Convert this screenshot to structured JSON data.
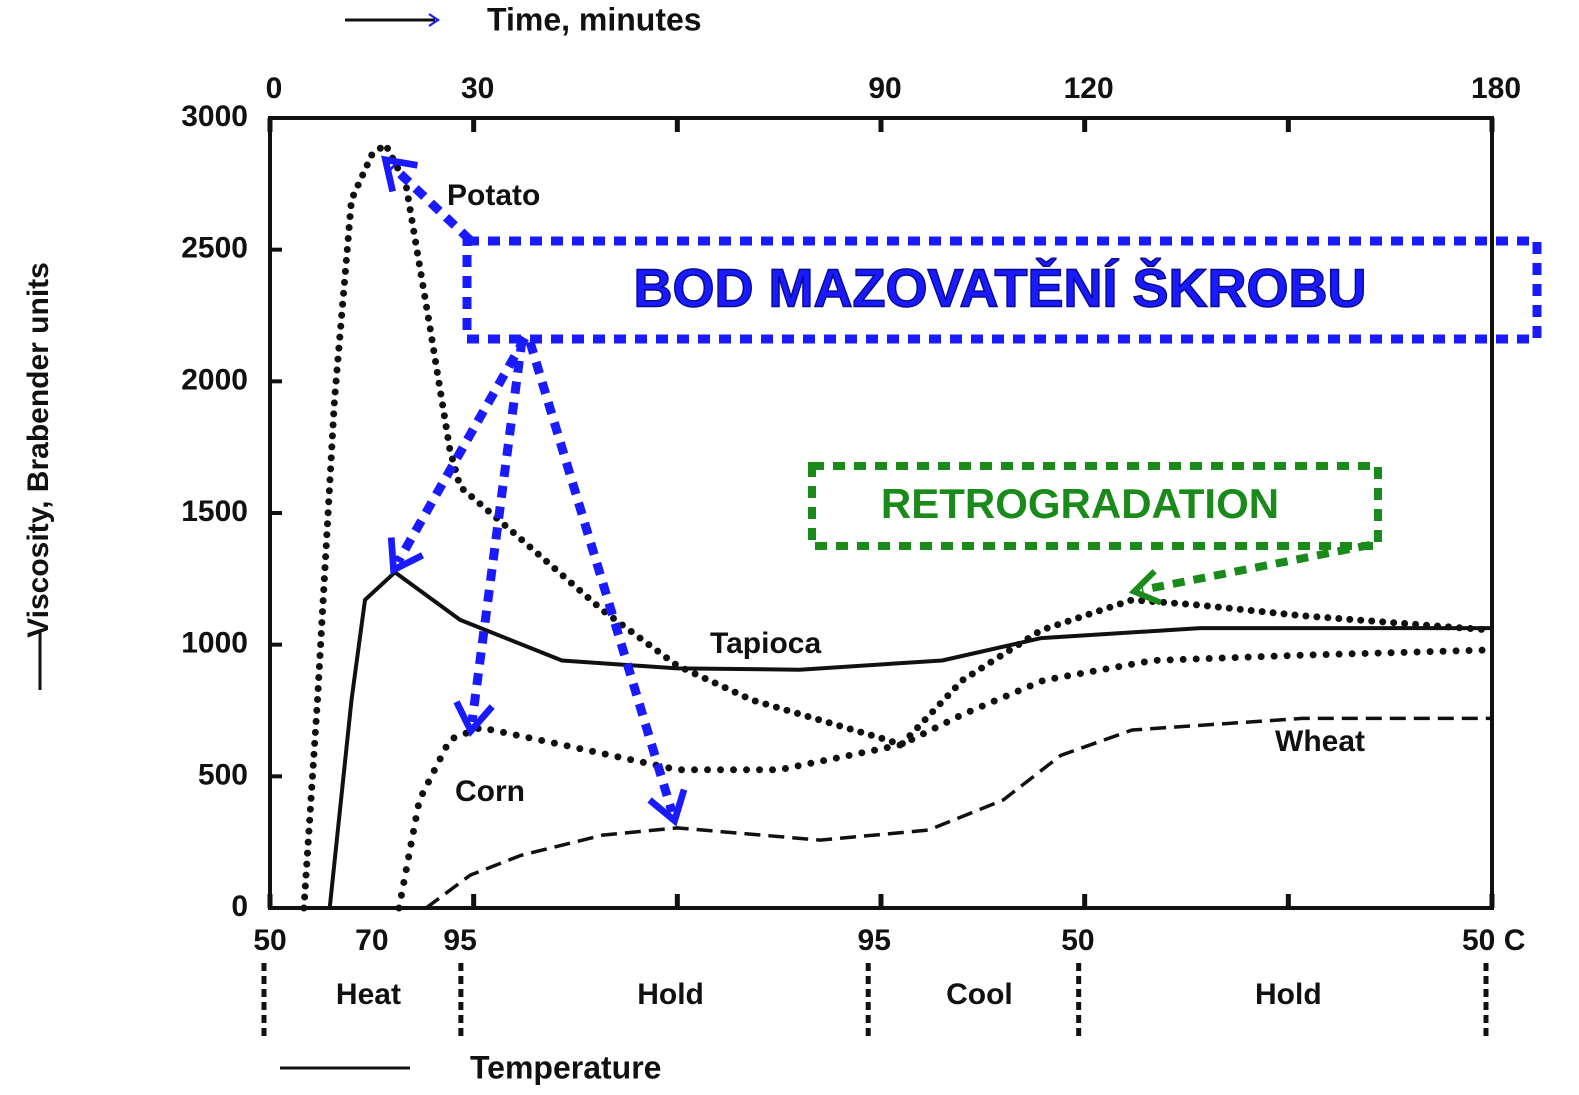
{
  "chart_data": {
    "type": "line",
    "xlabel": "Time, minutes",
    "ylabel": "Viscosity, Brabender units",
    "x2label": "Temperature",
    "xlim": [
      0,
      180
    ],
    "xticks": [
      0,
      30,
      90,
      120,
      180
    ],
    "xminorticks": [
      60,
      150
    ],
    "ylim": [
      0,
      3000
    ],
    "yticks": [
      0,
      500,
      1000,
      1500,
      2000,
      2500,
      3000
    ],
    "temperature_ticks": [
      {
        "value": 0,
        "label": "50"
      },
      {
        "value": 15,
        "label": "70"
      },
      {
        "value": 28,
        "label": "95"
      },
      {
        "value": 89,
        "label": "95"
      },
      {
        "value": 119,
        "label": "50"
      },
      {
        "value": 180,
        "label": "50 C"
      }
    ],
    "phase_boundaries": [
      0,
      29,
      89,
      120,
      180
    ],
    "phases": [
      "Heat",
      "Hold",
      "Cool",
      "Hold"
    ],
    "series": [
      {
        "name": "Potato",
        "color": "#111111",
        "dash": "dotted",
        "x": [
          5,
          7,
          9.5,
          12,
          15,
          17,
          20,
          23.6,
          26.5,
          28,
          37,
          49,
          60,
          71,
          90,
          93,
          102,
          113.6,
          127,
          137,
          152,
          180
        ],
        "values": [
          0,
          790,
          1930,
          2690,
          2860,
          2900,
          2750,
          2200,
          1740,
          1600,
          1400,
          1130,
          920,
          790,
          645,
          620,
          865,
          1055,
          1170,
          1150,
          1110,
          1055
        ]
      },
      {
        "name": "Tapioca",
        "color": "#111111",
        "dash": "solid",
        "x": [
          8.8,
          12,
          14,
          18.4,
          28,
          43,
          60,
          78,
          99,
          113.6,
          137,
          180
        ],
        "values": [
          0,
          790,
          1170,
          1275,
          1094,
          940,
          910,
          905,
          940,
          1025,
          1063,
          1063
        ]
      },
      {
        "name": "Corn",
        "color": "#111111",
        "dash": "dots",
        "x": [
          19,
          22,
          26.5,
          31,
          43,
          60,
          75,
          93,
          102,
          114,
          130,
          152,
          180
        ],
        "values": [
          0,
          410,
          640,
          685,
          620,
          525,
          525,
          620,
          735,
          865,
          940,
          960,
          980
        ]
      },
      {
        "name": "Wheat",
        "color": "#111111",
        "dash": "dashed",
        "x": [
          23,
          29.5,
          37,
          49,
          60,
          81,
          97,
          108,
          116.5,
          127,
          152,
          180
        ],
        "values": [
          0,
          125,
          200,
          277,
          304,
          258,
          296,
          410,
          580,
          676,
          720,
          720
        ]
      }
    ],
    "annotations": [
      "BOD MAZOVATĚNÍ ŠKROBU",
      "RETROGRADATION"
    ]
  }
}
